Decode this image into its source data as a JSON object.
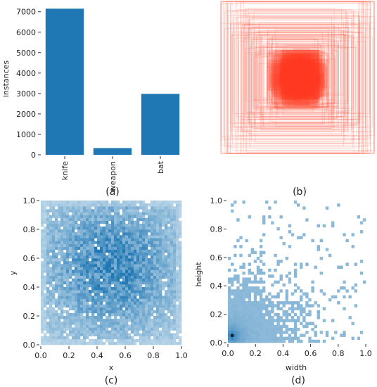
{
  "chart_data": [
    {
      "panel_label": "(a)",
      "type": "bar",
      "categories": [
        "knife",
        "weapon",
        "bat"
      ],
      "values": [
        7150,
        330,
        2980
      ],
      "ylabel": "instances",
      "yticks": [
        0,
        1000,
        2000,
        3000,
        4000,
        5000,
        6000,
        7000
      ],
      "ylim": [
        0,
        7300
      ],
      "color": "#1f77b4"
    },
    {
      "panel_label": "(b)",
      "type": "scatter",
      "description_kind": "overlaid bounding boxes centered in the image",
      "color": "#ff3b1f"
    },
    {
      "panel_label": "(c)",
      "type": "heatmap",
      "xlabel": "x",
      "ylabel": "y",
      "xticks": [
        "0.0",
        "0.2",
        "0.4",
        "0.6",
        "0.8",
        "1.0"
      ],
      "yticks": [
        "0.0",
        "0.2",
        "0.4",
        "0.6",
        "0.8",
        "1.0"
      ],
      "xlim": [
        0,
        1
      ],
      "ylim": [
        0,
        1
      ],
      "density_peak": [
        0.5,
        0.55
      ],
      "color": "#1f77b4"
    },
    {
      "panel_label": "(d)",
      "type": "heatmap",
      "xlabel": "width",
      "ylabel": "height",
      "xticks": [
        "0.0",
        "0.2",
        "0.4",
        "0.6",
        "0.8",
        "1.0"
      ],
      "yticks": [
        "0.0",
        "0.2",
        "0.4",
        "0.6",
        "0.8",
        "1.0"
      ],
      "xlim": [
        0,
        1
      ],
      "ylim": [
        0,
        1
      ],
      "density_peak": [
        0.03,
        0.05
      ],
      "color": "#1f77b4"
    }
  ]
}
